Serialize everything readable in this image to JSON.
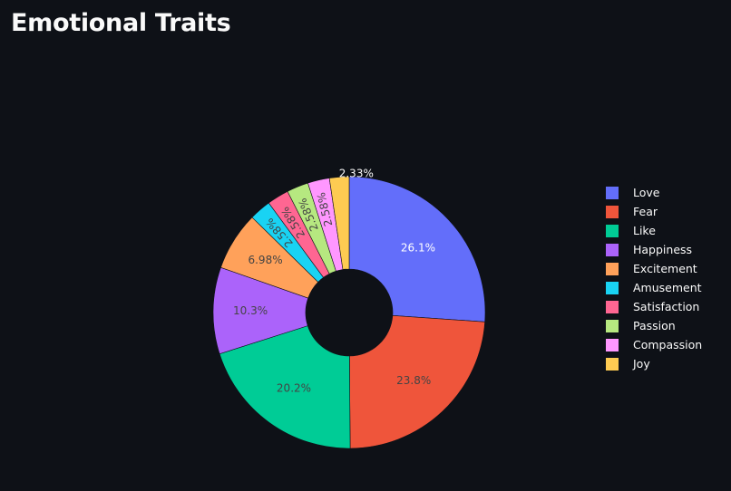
{
  "page": {
    "title": "Emotional Traits"
  },
  "chart_data": {
    "type": "pie",
    "hole": 0.32,
    "direction": "clockwise",
    "legend_position": "right",
    "labels": [
      "Love",
      "Fear",
      "Like",
      "Happiness",
      "Excitement",
      "Amusement",
      "Satisfaction",
      "Passion",
      "Compassion",
      "Joy"
    ],
    "values": [
      26.1,
      23.8,
      20.2,
      10.3,
      6.98,
      2.58,
      2.58,
      2.58,
      2.58,
      2.33
    ],
    "value_labels": [
      "26.1%",
      "23.8%",
      "20.2%",
      "10.3%",
      "6.98%",
      "2.58%",
      "2.58%",
      "2.58%",
      "2.58%",
      "2.33%"
    ],
    "colors": [
      "#636efa",
      "#ef553b",
      "#00cc96",
      "#ab63fa",
      "#ffa15a",
      "#19d3f3",
      "#ff6692",
      "#b6e880",
      "#ff97ff",
      "#fecb52"
    ],
    "label_text_colors": [
      "#ffffff",
      "#444444",
      "#444444",
      "#444444",
      "#444444",
      "#444444",
      "#444444",
      "#444444",
      "#444444",
      "#ffffff"
    ],
    "outside_labels": [
      "Joy"
    ]
  }
}
